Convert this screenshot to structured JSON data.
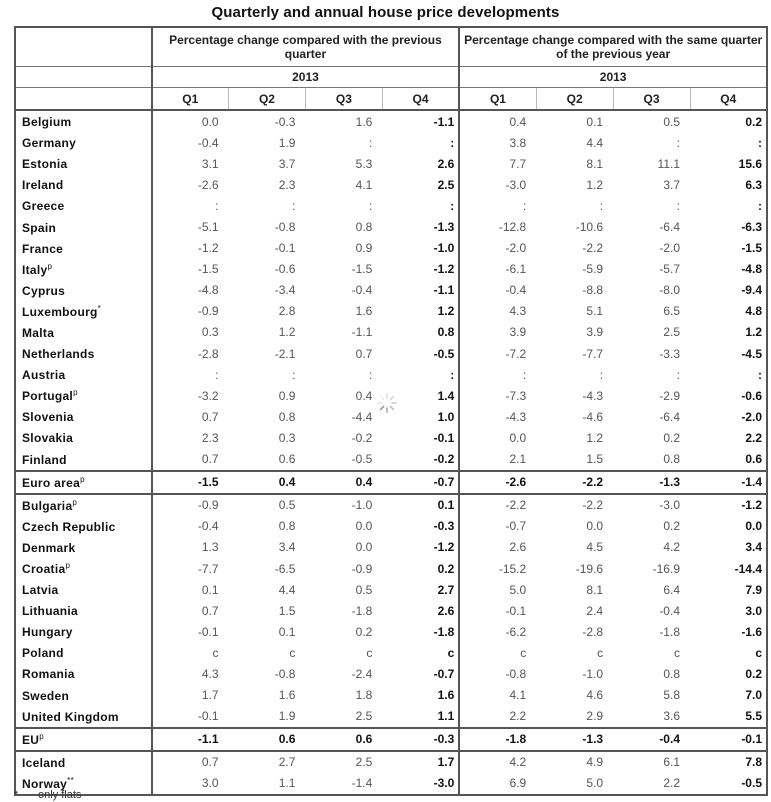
{
  "title": "Quarterly and annual house price developments",
  "header": {
    "group1": "Percentage change compared with the previous quarter",
    "group2": "Percentage change compared with the same quarter of the previous year",
    "year1": "2013",
    "year2": "2013",
    "quarters": [
      "Q1",
      "Q2",
      "Q3",
      "Q4",
      "Q1",
      "Q2",
      "Q3",
      "Q4"
    ]
  },
  "rows": [
    {
      "name": "Belgium",
      "sup": "",
      "v": [
        "0.0",
        "-0.3",
        "1.6",
        "-1.1",
        "0.4",
        "0.1",
        "0.5",
        "0.2"
      ]
    },
    {
      "name": "Germany",
      "sup": "",
      "v": [
        "-0.4",
        "1.9",
        ":",
        ":",
        "3.8",
        "4.4",
        ":",
        ":"
      ]
    },
    {
      "name": "Estonia",
      "sup": "",
      "v": [
        "3.1",
        "3.7",
        "5.3",
        "2.6",
        "7.7",
        "8.1",
        "11.1",
        "15.6"
      ]
    },
    {
      "name": "Ireland",
      "sup": "",
      "v": [
        "-2.6",
        "2.3",
        "4.1",
        "2.5",
        "-3.0",
        "1.2",
        "3.7",
        "6.3"
      ]
    },
    {
      "name": "Greece",
      "sup": "",
      "v": [
        ":",
        ":",
        ":",
        ":",
        ":",
        ":",
        ":",
        ":"
      ]
    },
    {
      "name": "Spain",
      "sup": "",
      "v": [
        "-5.1",
        "-0.8",
        "0.8",
        "-1.3",
        "-12.8",
        "-10.6",
        "-6.4",
        "-6.3"
      ]
    },
    {
      "name": "France",
      "sup": "",
      "v": [
        "-1.2",
        "-0.1",
        "0.9",
        "-1.0",
        "-2.0",
        "-2.2",
        "-2.0",
        "-1.5"
      ]
    },
    {
      "name": "Italy",
      "sup": "p",
      "v": [
        "-1.5",
        "-0.6",
        "-1.5",
        "-1.2",
        "-6.1",
        "-5.9",
        "-5.7",
        "-4.8"
      ]
    },
    {
      "name": "Cyprus",
      "sup": "",
      "v": [
        "-4.8",
        "-3.4",
        "-0.4",
        "-1.1",
        "-0.4",
        "-8.8",
        "-8.0",
        "-9.4"
      ]
    },
    {
      "name": "Luxembourg",
      "sup": "*",
      "v": [
        "-0.9",
        "2.8",
        "1.6",
        "1.2",
        "4.3",
        "5.1",
        "6.5",
        "4.8"
      ]
    },
    {
      "name": "Malta",
      "sup": "",
      "v": [
        "0.3",
        "1.2",
        "-1.1",
        "0.8",
        "3.9",
        "3.9",
        "2.5",
        "1.2"
      ]
    },
    {
      "name": "Netherlands",
      "sup": "",
      "v": [
        "-2.8",
        "-2.1",
        "0.7",
        "-0.5",
        "-7.2",
        "-7.7",
        "-3.3",
        "-4.5"
      ]
    },
    {
      "name": "Austria",
      "sup": "",
      "v": [
        ":",
        ":",
        ":",
        ":",
        ":",
        ":",
        ":",
        ":"
      ]
    },
    {
      "name": "Portugal",
      "sup": "p",
      "v": [
        "-3.2",
        "0.9",
        "0.4",
        "1.4",
        "-7.3",
        "-4.3",
        "-2.9",
        "-0.6"
      ]
    },
    {
      "name": "Slovenia",
      "sup": "",
      "v": [
        "0.7",
        "0.8",
        "-4.4",
        "1.0",
        "-4.3",
        "-4.6",
        "-6.4",
        "-2.0"
      ]
    },
    {
      "name": "Slovakia",
      "sup": "",
      "v": [
        "2.3",
        "0.3",
        "-0.2",
        "-0.1",
        "0.0",
        "1.2",
        "0.2",
        "2.2"
      ]
    },
    {
      "name": "Finland",
      "sup": "",
      "v": [
        "0.7",
        "0.6",
        "-0.5",
        "-0.2",
        "2.1",
        "1.5",
        "0.8",
        "0.6"
      ]
    },
    {
      "name": "Euro area",
      "sup": "p",
      "v": [
        "-1.5",
        "0.4",
        "0.4",
        "-0.7",
        "-2.6",
        "-2.2",
        "-1.3",
        "-1.4"
      ]
    },
    {
      "name": "Bulgaria",
      "sup": "p",
      "v": [
        "-0.9",
        "0.5",
        "-1.0",
        "0.1",
        "-2.2",
        "-2.2",
        "-3.0",
        "-1.2"
      ]
    },
    {
      "name": "Czech Republic",
      "sup": "",
      "v": [
        "-0.4",
        "0.8",
        "0.0",
        "-0.3",
        "-0.7",
        "0.0",
        "0.2",
        "0.0"
      ]
    },
    {
      "name": "Denmark",
      "sup": "",
      "v": [
        "1.3",
        "3.4",
        "0.0",
        "-1.2",
        "2.6",
        "4.5",
        "4.2",
        "3.4"
      ]
    },
    {
      "name": "Croatia",
      "sup": "p",
      "v": [
        "-7.7",
        "-6.5",
        "-0.9",
        "0.2",
        "-15.2",
        "-19.6",
        "-16.9",
        "-14.4"
      ]
    },
    {
      "name": "Latvia",
      "sup": "",
      "v": [
        "0.1",
        "4.4",
        "0.5",
        "2.7",
        "5.0",
        "8.1",
        "6.4",
        "7.9"
      ]
    },
    {
      "name": "Lithuania",
      "sup": "",
      "v": [
        "0.7",
        "1.5",
        "-1.8",
        "2.6",
        "-0.1",
        "2.4",
        "-0.4",
        "3.0"
      ]
    },
    {
      "name": "Hungary",
      "sup": "",
      "v": [
        "-0.1",
        "0.1",
        "0.2",
        "-1.8",
        "-6.2",
        "-2.8",
        "-1.8",
        "-1.6"
      ]
    },
    {
      "name": "Poland",
      "sup": "",
      "v": [
        "c",
        "c",
        "c",
        "c",
        "c",
        "c",
        "c",
        "c"
      ]
    },
    {
      "name": "Romania",
      "sup": "",
      "v": [
        "4.3",
        "-0.8",
        "-2.4",
        "-0.7",
        "-0.8",
        "-1.0",
        "0.8",
        "0.2"
      ]
    },
    {
      "name": "Sweden",
      "sup": "",
      "v": [
        "1.7",
        "1.6",
        "1.8",
        "1.6",
        "4.1",
        "4.6",
        "5.8",
        "7.0"
      ]
    },
    {
      "name": "United Kingdom",
      "sup": "",
      "v": [
        "-0.1",
        "1.9",
        "2.5",
        "1.1",
        "2.2",
        "2.9",
        "3.6",
        "5.5"
      ]
    },
    {
      "name": "EU",
      "sup": "p",
      "v": [
        "-1.1",
        "0.6",
        "0.6",
        "-0.3",
        "-1.8",
        "-1.3",
        "-0.4",
        "-0.1"
      ]
    },
    {
      "name": "Iceland",
      "sup": "",
      "v": [
        "0.7",
        "2.7",
        "2.5",
        "1.7",
        "4.2",
        "4.9",
        "6.1",
        "7.8"
      ]
    },
    {
      "name": "Norway",
      "sup": "**",
      "v": [
        "3.0",
        "1.1",
        "-1.4",
        "-3.0",
        "6.9",
        "5.0",
        "2.2",
        "-0.5"
      ]
    }
  ],
  "footnote": {
    "mark": "*",
    "text": "only flats"
  },
  "spinner": {
    "icon": "loading-spinner-icon"
  }
}
